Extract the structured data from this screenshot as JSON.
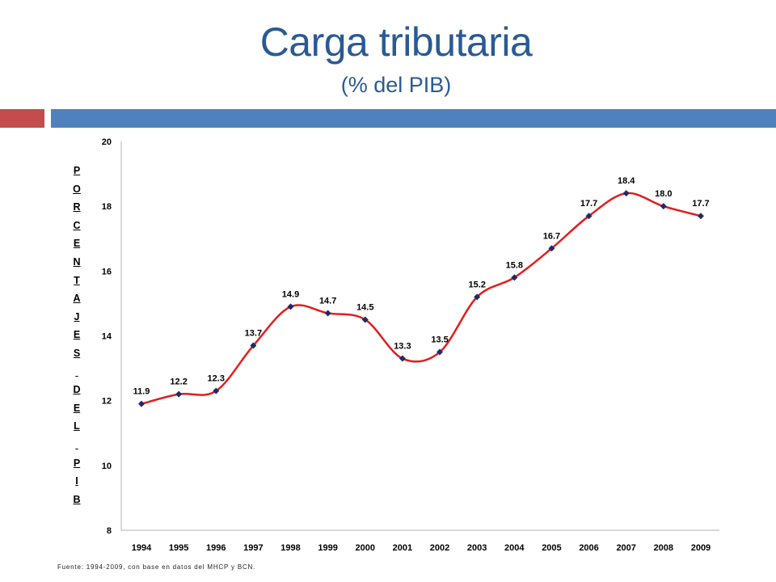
{
  "header": {
    "title": "Carga tributaria",
    "subtitle": "(% del PIB)"
  },
  "colors": {
    "title": "#2a5a93",
    "accent_red": "#c24d4d",
    "accent_blue": "#4f81bd",
    "line": "#e11e1e",
    "marker": "#1f2a66"
  },
  "chart_data": {
    "type": "line",
    "ylabel": "PORCENTAJES DEL PIB",
    "ylabel_letters": [
      "P",
      "O",
      "R",
      "C",
      "E",
      "N",
      "T",
      "A",
      "J",
      "E",
      "S",
      " ",
      "D",
      "E",
      "L",
      " ",
      "P",
      "I",
      "B"
    ],
    "x": [
      "1994",
      "1995",
      "1996",
      "1997",
      "1998",
      "1999",
      "2000",
      "2001",
      "2002",
      "2003",
      "2004",
      "2005",
      "2006",
      "2007",
      "2008",
      "2009"
    ],
    "series": [
      {
        "values": [
          11.9,
          12.2,
          12.3,
          13.7,
          14.9,
          14.7,
          14.5,
          13.3,
          13.5,
          15.2,
          15.8,
          16.7,
          17.7,
          18.4,
          18.0,
          17.7
        ],
        "labels": [
          "11.9",
          "12.2",
          "12.3",
          "13.7",
          "14.9",
          "14.7",
          "14.5",
          "13.3",
          "13.5",
          "15.2",
          "15.8",
          "16.7",
          "17.7",
          "18.4",
          "18.0",
          "17.7"
        ]
      }
    ],
    "ylim": [
      8,
      20
    ],
    "yticks": [
      "8",
      "10",
      "12",
      "14",
      "16",
      "18",
      "20"
    ],
    "grid": false,
    "smooth": true
  },
  "footer": {
    "source": "Fuente: 1994-2009, con base en datos del MHCP y BCN."
  }
}
